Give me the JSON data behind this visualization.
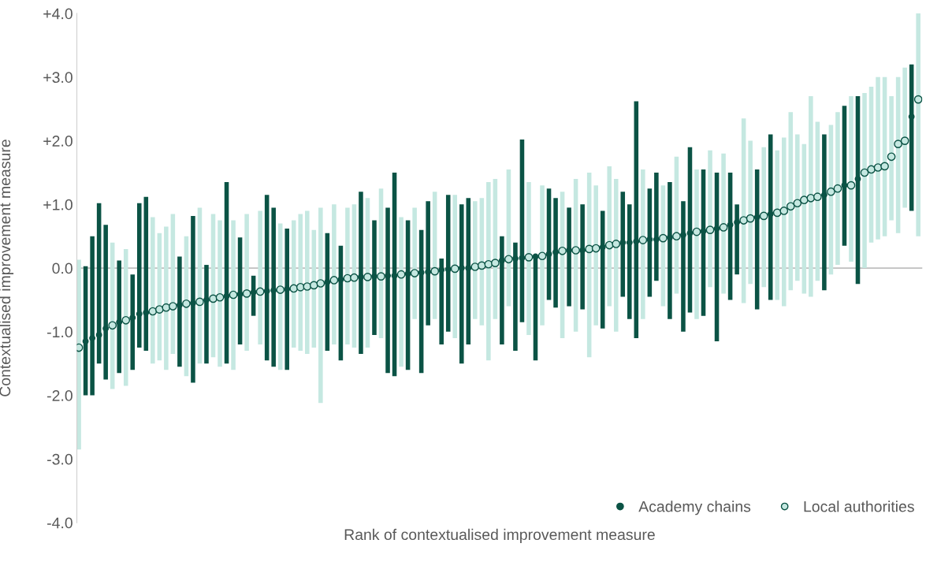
{
  "chart_data": {
    "type": "scatter",
    "xlabel": "Rank of contextualised improvement measure",
    "ylabel": "Contextualised improvement measure",
    "categories": [
      null,
      null,
      null,
      null,
      null,
      null,
      null,
      null,
      null,
      null,
      null,
      null,
      null,
      null,
      null,
      null,
      null,
      null,
      null,
      null,
      null,
      null,
      null,
      null,
      null,
      null,
      null,
      null,
      null,
      null,
      null,
      null,
      null,
      null,
      null,
      null,
      null,
      null,
      null,
      null,
      null,
      null,
      null,
      null,
      null,
      null,
      null,
      null,
      null,
      null,
      null,
      null,
      null,
      null,
      null,
      null,
      null,
      null,
      null,
      null,
      null,
      null,
      null,
      null,
      null,
      null,
      null,
      null,
      null,
      null,
      null,
      null,
      null,
      null,
      null,
      null,
      null,
      null,
      null,
      null,
      null,
      null,
      null,
      null,
      null,
      null,
      null,
      null,
      null,
      null,
      null,
      null,
      null,
      null,
      null,
      null,
      null,
      null,
      null,
      null,
      null,
      null,
      null,
      null,
      null,
      null,
      null,
      null,
      null,
      null,
      null,
      null,
      null,
      null,
      null,
      null,
      null,
      null,
      null,
      null,
      null,
      null,
      null,
      null,
      null,
      null
    ],
    "series": [
      {
        "name": "Local authorities",
        "color": "#c5e8e1",
        "marker": "circle",
        "values": [
          -1.25,
          null,
          null,
          null,
          null,
          -0.9,
          null,
          -0.82,
          null,
          null,
          null,
          -0.68,
          -0.65,
          -0.62,
          -0.6,
          null,
          -0.56,
          null,
          -0.53,
          null,
          -0.48,
          -0.46,
          null,
          -0.42,
          null,
          -0.4,
          null,
          -0.37,
          null,
          null,
          -0.34,
          null,
          -0.32,
          -0.3,
          -0.29,
          -0.27,
          -0.24,
          null,
          -0.19,
          null,
          -0.16,
          -0.15,
          null,
          -0.14,
          null,
          -0.13,
          null,
          null,
          -0.1,
          null,
          -0.08,
          null,
          null,
          -0.05,
          null,
          null,
          -0.01,
          null,
          null,
          0.02,
          0.04,
          0.06,
          0.08,
          null,
          0.14,
          null,
          null,
          0.17,
          null,
          0.19,
          null,
          null,
          0.27,
          null,
          0.28,
          null,
          0.3,
          0.31,
          null,
          0.36,
          0.38,
          null,
          null,
          null,
          0.44,
          null,
          null,
          0.47,
          null,
          0.5,
          null,
          null,
          0.57,
          null,
          0.6,
          null,
          0.64,
          null,
          null,
          0.75,
          0.78,
          null,
          0.82,
          null,
          0.87,
          0.9,
          0.97,
          1.02,
          1.07,
          1.1,
          1.12,
          null,
          1.2,
          1.25,
          null,
          1.3,
          null,
          1.5,
          1.55,
          1.58,
          1.6,
          1.75,
          1.95,
          2.0,
          null,
          2.65
        ],
        "errors": [
          [
            -2.85,
            0.13
          ],
          null,
          null,
          null,
          null,
          [
            -1.9,
            0.4
          ],
          null,
          [
            -1.85,
            0.3
          ],
          null,
          null,
          null,
          [
            -1.5,
            0.8
          ],
          [
            -1.45,
            0.55
          ],
          [
            -1.6,
            0.65
          ],
          [
            -1.35,
            0.85
          ],
          null,
          [
            -1.7,
            0.5
          ],
          null,
          [
            -1.5,
            0.95
          ],
          null,
          [
            -1.4,
            0.85
          ],
          [
            -1.55,
            0.75
          ],
          null,
          [
            -1.6,
            0.75
          ],
          null,
          [
            -1.3,
            0.85
          ],
          null,
          [
            -1.2,
            0.9
          ],
          null,
          null,
          [
            -1.6,
            0.7
          ],
          null,
          [
            -1.25,
            0.75
          ],
          [
            -1.3,
            0.85
          ],
          [
            -1.35,
            0.9
          ],
          [
            -1.25,
            0.6
          ],
          [
            -2.12,
            0.95
          ],
          null,
          [
            -1.2,
            1.0
          ],
          null,
          [
            -1.2,
            0.95
          ],
          [
            -1.25,
            1.0
          ],
          null,
          [
            -1.25,
            1.1
          ],
          null,
          [
            -1.1,
            1.25
          ],
          null,
          null,
          [
            -1.55,
            0.8
          ],
          null,
          [
            -0.8,
            0.95
          ],
          null,
          null,
          [
            -0.8,
            1.2
          ],
          null,
          null,
          [
            -1.1,
            1.15
          ],
          null,
          null,
          [
            -0.8,
            1.05
          ],
          [
            -0.9,
            1.1
          ],
          [
            -1.45,
            1.35
          ],
          [
            -0.8,
            1.4
          ],
          null,
          [
            -0.6,
            1.55
          ],
          null,
          null,
          [
            -1.05,
            1.35
          ],
          null,
          [
            -0.9,
            1.3
          ],
          null,
          null,
          [
            -1.1,
            1.2
          ],
          null,
          [
            -1.0,
            1.4
          ],
          null,
          [
            -1.4,
            1.5
          ],
          [
            -0.9,
            1.3
          ],
          null,
          [
            -0.6,
            1.6
          ],
          [
            -1.0,
            1.4
          ],
          null,
          null,
          null,
          [
            -0.8,
            1.55
          ],
          null,
          null,
          [
            -0.6,
            1.3
          ],
          null,
          [
            -0.4,
            1.75
          ],
          null,
          null,
          [
            -0.8,
            1.55
          ],
          null,
          [
            -0.3,
            1.85
          ],
          null,
          [
            -0.4,
            1.8
          ],
          null,
          null,
          [
            -0.55,
            2.35
          ],
          [
            -0.25,
            2.0
          ],
          null,
          [
            -0.3,
            1.9
          ],
          null,
          [
            -0.5,
            1.85
          ],
          [
            -0.6,
            2.05
          ],
          [
            -0.35,
            2.45
          ],
          [
            -0.2,
            2.1
          ],
          [
            -0.4,
            1.95
          ],
          [
            -0.45,
            2.7
          ],
          [
            -0.2,
            2.3
          ],
          null,
          [
            -0.1,
            2.25
          ],
          [
            0.05,
            2.45
          ],
          null,
          [
            0.1,
            2.7
          ],
          null,
          [
            0.0,
            2.75
          ],
          [
            0.4,
            2.85
          ],
          [
            0.45,
            3.0
          ],
          [
            0.5,
            3.0
          ],
          [
            0.75,
            2.7
          ],
          [
            0.55,
            3.0
          ],
          [
            0.95,
            3.15
          ],
          null,
          [
            0.5,
            4.0
          ]
        ]
      },
      {
        "name": "Academy chains",
        "color": "#0b5345",
        "marker": "circle",
        "values": [
          null,
          -1.15,
          -1.1,
          -1.05,
          -0.95,
          null,
          -0.85,
          null,
          -0.78,
          -0.72,
          -0.7,
          null,
          null,
          null,
          null,
          -0.58,
          null,
          -0.55,
          null,
          -0.5,
          null,
          null,
          -0.44,
          null,
          -0.41,
          null,
          -0.38,
          null,
          -0.36,
          -0.35,
          null,
          -0.33,
          null,
          null,
          null,
          null,
          null,
          -0.22,
          null,
          -0.18,
          null,
          null,
          -0.14,
          null,
          -0.13,
          null,
          -0.12,
          -0.12,
          null,
          -0.09,
          null,
          -0.07,
          -0.06,
          null,
          -0.03,
          -0.02,
          null,
          0.0,
          0.0,
          null,
          null,
          null,
          null,
          0.12,
          null,
          0.15,
          0.16,
          null,
          0.18,
          null,
          0.22,
          0.25,
          null,
          0.28,
          null,
          0.28,
          null,
          null,
          0.33,
          null,
          null,
          0.4,
          0.4,
          0.42,
          null,
          0.45,
          0.45,
          null,
          0.48,
          null,
          0.52,
          0.55,
          null,
          0.58,
          null,
          0.62,
          null,
          0.68,
          0.72,
          null,
          null,
          0.8,
          null,
          0.85,
          null,
          null,
          null,
          null,
          null,
          null,
          null,
          1.15,
          null,
          null,
          1.3,
          null,
          1.4,
          null,
          null,
          null,
          null,
          null,
          null,
          null,
          2.38,
          null
        ],
        "errors": [
          null,
          [
            -2.0,
            0.03
          ],
          [
            -2.0,
            0.5
          ],
          [
            -1.5,
            1.02
          ],
          [
            -1.75,
            0.68
          ],
          null,
          [
            -1.65,
            0.12
          ],
          null,
          [
            -1.6,
            -0.1
          ],
          [
            -1.25,
            1.02
          ],
          [
            -1.3,
            1.12
          ],
          null,
          null,
          null,
          null,
          [
            -1.55,
            0.18
          ],
          null,
          [
            -1.8,
            0.82
          ],
          null,
          [
            -1.5,
            0.05
          ],
          null,
          null,
          [
            -1.5,
            1.35
          ],
          null,
          [
            -1.2,
            0.48
          ],
          null,
          [
            -0.75,
            -0.12
          ],
          null,
          [
            -1.45,
            1.15
          ],
          [
            -1.55,
            0.95
          ],
          null,
          [
            -1.6,
            0.62
          ],
          null,
          null,
          null,
          null,
          null,
          [
            -1.3,
            0.55
          ],
          null,
          [
            -1.45,
            0.35
          ],
          null,
          null,
          [
            -1.35,
            1.2
          ],
          null,
          [
            -1.05,
            0.75
          ],
          null,
          [
            -1.65,
            0.95
          ],
          [
            -1.7,
            1.5
          ],
          null,
          [
            -1.6,
            0.75
          ],
          null,
          [
            -1.65,
            0.6
          ],
          [
            -0.9,
            1.05
          ],
          null,
          [
            -1.2,
            0.15
          ],
          [
            -1.0,
            1.15
          ],
          null,
          [
            -1.5,
            1.0
          ],
          [
            -1.2,
            1.1
          ],
          null,
          null,
          null,
          null,
          [
            -1.2,
            0.5
          ],
          null,
          [
            -1.3,
            0.4
          ],
          [
            -0.85,
            2.02
          ],
          null,
          [
            -1.45,
            0.2
          ],
          null,
          [
            -0.5,
            1.25
          ],
          [
            -0.62,
            1.1
          ],
          null,
          [
            -0.6,
            0.95
          ],
          null,
          [
            -0.65,
            1.0
          ],
          null,
          null,
          [
            -0.95,
            0.9
          ],
          null,
          null,
          [
            -0.45,
            1.2
          ],
          [
            -0.8,
            1.0
          ],
          [
            -1.1,
            2.62
          ],
          null,
          [
            -0.45,
            1.25
          ],
          [
            -0.2,
            1.5
          ],
          null,
          [
            -0.8,
            1.35
          ],
          null,
          [
            -1.0,
            1.05
          ],
          [
            -0.7,
            1.9
          ],
          null,
          [
            -0.75,
            1.55
          ],
          null,
          [
            -1.15,
            1.5
          ],
          null,
          [
            -0.5,
            1.5
          ],
          [
            -0.1,
            1.0
          ],
          null,
          null,
          [
            -0.65,
            1.55
          ],
          null,
          [
            -0.5,
            2.1
          ],
          null,
          null,
          null,
          null,
          null,
          null,
          null,
          [
            -0.35,
            2.1
          ],
          null,
          null,
          [
            0.35,
            2.55
          ],
          null,
          [
            -0.25,
            2.7
          ],
          null,
          null,
          null,
          null,
          null,
          null,
          null,
          [
            0.9,
            3.2
          ],
          null
        ]
      }
    ],
    "ylim": [
      -4.0,
      4.0
    ],
    "yticks": [
      {
        "value": -4,
        "label": "-4.0"
      },
      {
        "value": -3,
        "label": "-3.0"
      },
      {
        "value": -2,
        "label": "-2.0"
      },
      {
        "value": -1,
        "label": "-1.0"
      },
      {
        "value": 0,
        "label": "0.0"
      },
      {
        "value": 1,
        "label": "+1.0"
      },
      {
        "value": 2,
        "label": "+2.0"
      },
      {
        "value": 3,
        "label": "+3.0"
      },
      {
        "value": 4,
        "label": "+4.0"
      }
    ],
    "ref_lines": [
      {
        "axis": "y",
        "value": 0,
        "color": "#bfbfbf"
      }
    ],
    "grid": false,
    "legend": "bottom right",
    "tick_labels": "y"
  }
}
